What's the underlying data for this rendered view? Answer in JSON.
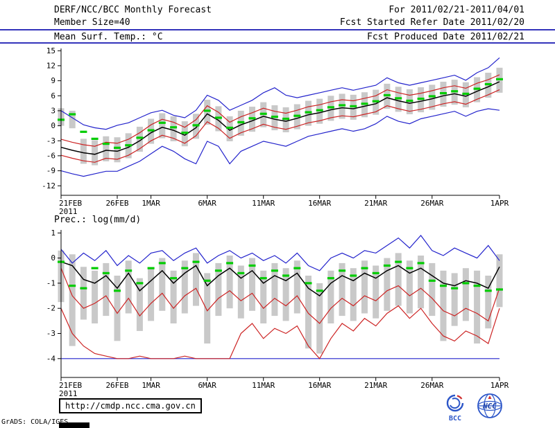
{
  "header": {
    "title": "DERF/NCC/BCC Monthly Forecast",
    "member_size": "Member Size=40",
    "temp_title": "Mean Surf. Temp.: °C",
    "forecast_range": "For 2011/02/21-2011/04/01",
    "refer_date": "Fcst Started Refer Date 2011/02/20",
    "produced_date": "Fcst Produced Date 2011/02/21"
  },
  "precip_title": "Prec.: log(mm/d)",
  "footer": {
    "url": "http://cmdp.ncc.cma.gov.cn",
    "grads_credit": "GrADS: COLA/IGES",
    "bcc_label": "BCC",
    "ncc_label": "NCC"
  },
  "colors": {
    "bar": "#c9c9c9",
    "mean": "#000000",
    "envelope": "#2222cc",
    "sigma": "#cc2222",
    "obs": "#00cc00",
    "header_rule": "#3333bb",
    "axis": "#000000",
    "logo_blue": "#2b55c8",
    "logo_red": "#d03030"
  },
  "chart_data": [
    {
      "type": "line",
      "title": "Mean Surf. Temp.: °C",
      "ylabel": "°C",
      "ylim": [
        -12,
        15
      ],
      "yticks": [
        15,
        12,
        9,
        6,
        3,
        0,
        -3,
        -6,
        -9,
        -12
      ],
      "n_days": 40,
      "x_ticks": [
        {
          "label": "21FEB",
          "day": 0
        },
        {
          "label": "26FEB",
          "day": 5
        },
        {
          "label": "1MAR",
          "day": 8
        },
        {
          "label": "6MAR",
          "day": 13
        },
        {
          "label": "11MAR",
          "day": 18
        },
        {
          "label": "16MAR",
          "day": 23
        },
        {
          "label": "21MAR",
          "day": 28
        },
        {
          "label": "26MAR",
          "day": 33
        },
        {
          "label": "1APR",
          "day": 39
        }
      ],
      "x_year_label": "2011",
      "bars": {
        "low": [
          0.0,
          -0.5,
          -7.6,
          -7.9,
          -7.1,
          -7.3,
          -6.5,
          -5.2,
          -3.6,
          -2.5,
          -3.1,
          -4.1,
          -2.6,
          0.2,
          -1.1,
          -3.1,
          -2.0,
          -1.2,
          -0.3,
          -0.9,
          -1.3,
          -0.7,
          0.0,
          0.4,
          1.0,
          1.4,
          1.2,
          1.7,
          2.2,
          3.4,
          2.8,
          2.3,
          2.7,
          3.2,
          3.8,
          4.2,
          3.7,
          4.7,
          5.6,
          6.6
        ],
        "high": [
          3.5,
          3.0,
          -2.6,
          -2.9,
          -2.1,
          -2.3,
          -1.5,
          -0.2,
          1.4,
          2.5,
          1.9,
          0.9,
          2.4,
          5.2,
          3.9,
          1.9,
          3.0,
          3.8,
          4.7,
          4.1,
          3.7,
          4.3,
          5.0,
          5.4,
          6.0,
          6.4,
          6.2,
          6.7,
          7.2,
          8.4,
          7.8,
          7.3,
          7.7,
          8.2,
          8.8,
          9.2,
          8.7,
          9.7,
          10.6,
          11.6
        ]
      },
      "obs": [
        1.2,
        2.3,
        -1.2,
        -2.6,
        -3.6,
        -4.4,
        -3.9,
        -2.4,
        -0.9,
        0.6,
        -0.3,
        -1.4,
        0.1,
        3.0,
        1.6,
        -0.4,
        0.7,
        1.5,
        2.4,
        1.8,
        1.4,
        2.0,
        2.7,
        3.1,
        3.7,
        4.1,
        3.9,
        4.4,
        4.9,
        6.1,
        5.5,
        5.0,
        5.4,
        5.9,
        6.5,
        6.9,
        6.4,
        7.4,
        8.3,
        9.3
      ],
      "series": [
        {
          "name": "ensemble-max",
          "color": "#2222cc",
          "values": [
            3.0,
            1.6,
            0.2,
            -0.4,
            -0.7,
            0.1,
            0.6,
            1.6,
            2.6,
            3.1,
            2.1,
            1.6,
            3.1,
            6.1,
            5.1,
            3.1,
            4.1,
            5.1,
            6.6,
            7.6,
            6.1,
            5.6,
            6.1,
            6.6,
            7.1,
            7.6,
            7.1,
            7.6,
            8.1,
            9.6,
            8.6,
            8.1,
            8.6,
            9.1,
            9.6,
            10.1,
            9.1,
            10.6,
            11.6,
            13.6
          ]
        },
        {
          "name": "ensemble-min",
          "color": "#2222cc",
          "values": [
            -9.0,
            -9.6,
            -10.1,
            -9.6,
            -9.1,
            -9.1,
            -8.1,
            -7.1,
            -5.6,
            -4.1,
            -5.1,
            -6.6,
            -7.6,
            -3.1,
            -4.1,
            -7.6,
            -5.1,
            -4.1,
            -3.1,
            -3.6,
            -4.1,
            -3.1,
            -2.1,
            -1.6,
            -1.1,
            -0.6,
            -1.1,
            -0.6,
            0.4,
            1.9,
            0.9,
            0.4,
            1.4,
            1.9,
            2.4,
            2.9,
            1.9,
            2.9,
            3.4,
            3.1
          ]
        },
        {
          "name": "sigma-upper",
          "color": "#cc2222",
          "values": [
            -2.7,
            -3.3,
            -3.8,
            -4.1,
            -3.3,
            -3.5,
            -2.7,
            -1.4,
            0.2,
            1.3,
            0.7,
            -0.3,
            1.2,
            4.0,
            2.7,
            0.7,
            1.8,
            2.6,
            3.5,
            2.9,
            2.5,
            3.1,
            3.8,
            4.2,
            4.8,
            5.2,
            5.0,
            5.5,
            6.0,
            7.2,
            6.6,
            6.1,
            6.5,
            7.0,
            7.6,
            8.0,
            7.5,
            8.5,
            9.2,
            10.2
          ]
        },
        {
          "name": "sigma-lower",
          "color": "#cc2222",
          "values": [
            -5.9,
            -6.5,
            -7.0,
            -7.3,
            -6.5,
            -6.7,
            -5.9,
            -4.6,
            -3.0,
            -1.9,
            -2.5,
            -3.5,
            -2.0,
            0.8,
            -0.5,
            -2.5,
            -1.4,
            -0.6,
            0.3,
            -0.3,
            -0.7,
            -0.1,
            0.6,
            1.0,
            1.6,
            2.0,
            1.8,
            2.3,
            2.8,
            4.0,
            3.4,
            2.9,
            3.3,
            3.8,
            4.4,
            4.8,
            4.3,
            5.3,
            6.2,
            7.2
          ]
        },
        {
          "name": "ensemble-mean",
          "color": "#000000",
          "values": [
            -4.3,
            -4.9,
            -5.4,
            -5.7,
            -4.9,
            -5.1,
            -4.3,
            -3.0,
            -1.4,
            -0.3,
            -0.9,
            -1.9,
            -0.4,
            2.4,
            1.1,
            -0.9,
            0.2,
            1.0,
            1.9,
            1.3,
            0.9,
            1.5,
            2.2,
            2.6,
            3.2,
            3.6,
            3.4,
            3.9,
            4.4,
            5.6,
            5.0,
            4.5,
            4.9,
            5.4,
            6.0,
            6.4,
            5.9,
            6.9,
            7.8,
            8.8
          ]
        }
      ]
    },
    {
      "type": "line",
      "title": "Prec.: log(mm/d)",
      "ylabel": "log(mm/d)",
      "ylim": [
        -4,
        1
      ],
      "yticks": [
        1,
        0,
        -1,
        -2,
        -3,
        -4
      ],
      "n_days": 40,
      "x_ticks": [
        {
          "label": "21FEB",
          "day": 0
        },
        {
          "label": "26FEB",
          "day": 5
        },
        {
          "label": "1MAR",
          "day": 8
        },
        {
          "label": "6MAR",
          "day": 13
        },
        {
          "label": "11MAR",
          "day": 18
        },
        {
          "label": "16MAR",
          "day": 23
        },
        {
          "label": "21MAR",
          "day": 28
        },
        {
          "label": "26MAR",
          "day": 33
        },
        {
          "label": "1APR",
          "day": 39
        }
      ],
      "x_year_label": "2011",
      "bars": {
        "low": [
          -1.75,
          -3.5,
          -2.45,
          -2.6,
          -2.3,
          -3.3,
          -2.2,
          -2.9,
          -2.5,
          -2.1,
          -2.6,
          -2.2,
          -1.9,
          -3.4,
          -2.3,
          -2.0,
          -2.4,
          -2.1,
          -2.6,
          -2.3,
          -2.5,
          -2.2,
          -3.6,
          -3.8,
          -2.6,
          -2.3,
          -2.5,
          -2.2,
          -2.4,
          -2.1,
          -1.9,
          -2.2,
          -2.0,
          -2.3,
          -3.3,
          -2.7,
          -2.5,
          -3.4,
          -2.8,
          -1.95
        ],
        "high": [
          0.3,
          0.15,
          -0.35,
          -0.5,
          -0.2,
          -0.7,
          -0.1,
          -0.8,
          -0.4,
          0.0,
          -0.5,
          -0.1,
          0.2,
          -0.6,
          -0.2,
          0.1,
          -0.3,
          0.0,
          -0.5,
          -0.2,
          -0.4,
          -0.1,
          -0.7,
          -1.0,
          -0.5,
          -0.2,
          -0.4,
          -0.1,
          -0.3,
          0.0,
          0.2,
          -0.1,
          0.1,
          -0.2,
          -0.5,
          -0.6,
          -0.4,
          -0.5,
          -0.7,
          0.15
        ]
      },
      "obs": [
        -0.15,
        -1.1,
        -1.2,
        -0.4,
        -0.6,
        -1.3,
        -0.5,
        -1.0,
        -0.4,
        -0.2,
        -0.8,
        -0.4,
        -0.15,
        -0.9,
        -0.5,
        -0.2,
        -0.6,
        -0.3,
        -0.8,
        -0.5,
        -0.7,
        -0.4,
        -1.0,
        -1.3,
        -0.8,
        -0.5,
        -0.7,
        -0.4,
        -0.6,
        -0.3,
        -0.15,
        -0.4,
        -0.2,
        -0.9,
        -1.1,
        -1.2,
        -1.0,
        -1.1,
        -1.3,
        -1.25
      ],
      "series": [
        {
          "name": "ensemble-max",
          "color": "#2222cc",
          "values": [
            0.35,
            -0.2,
            0.2,
            -0.1,
            0.3,
            -0.3,
            0.1,
            -0.2,
            0.2,
            0.3,
            -0.1,
            0.2,
            0.4,
            -0.2,
            0.1,
            0.3,
            0.0,
            0.2,
            -0.1,
            0.1,
            -0.2,
            0.2,
            -0.3,
            -0.5,
            0.0,
            0.2,
            0.0,
            0.3,
            0.2,
            0.5,
            0.8,
            0.4,
            0.9,
            0.3,
            0.1,
            0.4,
            0.2,
            0.0,
            0.5,
            -0.1
          ]
        },
        {
          "name": "ensemble-min",
          "color": "#2222cc",
          "const_value": -4.0
        },
        {
          "name": "sigma-upper",
          "color": "#cc2222",
          "values": [
            -0.4,
            -1.5,
            -2.0,
            -1.8,
            -1.5,
            -2.2,
            -1.6,
            -2.3,
            -1.8,
            -1.4,
            -2.0,
            -1.5,
            -1.2,
            -2.1,
            -1.6,
            -1.3,
            -1.7,
            -1.4,
            -2.0,
            -1.6,
            -1.9,
            -1.5,
            -2.2,
            -2.6,
            -2.0,
            -1.6,
            -1.9,
            -1.5,
            -1.7,
            -1.3,
            -1.1,
            -1.5,
            -1.2,
            -1.6,
            -2.1,
            -2.3,
            -2.0,
            -2.2,
            -2.5,
            -1.2
          ]
        },
        {
          "name": "sigma-lower",
          "color": "#cc2222",
          "values": [
            -2.0,
            -3.0,
            -3.5,
            -3.8,
            -3.9,
            -4.0,
            -4.0,
            -3.9,
            -4.0,
            -4.0,
            -4.0,
            -3.9,
            -4.0,
            -4.0,
            -4.0,
            -4.0,
            -3.0,
            -2.6,
            -3.2,
            -2.8,
            -3.0,
            -2.7,
            -3.5,
            -4.0,
            -3.2,
            -2.6,
            -2.9,
            -2.4,
            -2.7,
            -2.2,
            -1.9,
            -2.4,
            -2.0,
            -2.6,
            -3.1,
            -3.3,
            -2.9,
            -3.1,
            -3.4,
            -2.0
          ]
        },
        {
          "name": "ensemble-mean",
          "color": "#000000",
          "values": [
            -0.15,
            -0.3,
            -0.85,
            -1.0,
            -0.7,
            -1.2,
            -0.6,
            -1.3,
            -0.9,
            -0.5,
            -1.0,
            -0.6,
            -0.3,
            -1.1,
            -0.7,
            -0.4,
            -0.8,
            -0.5,
            -1.0,
            -0.7,
            -0.9,
            -0.6,
            -1.2,
            -1.5,
            -1.0,
            -0.7,
            -0.9,
            -0.6,
            -0.8,
            -0.5,
            -0.3,
            -0.6,
            -0.4,
            -0.7,
            -1.0,
            -1.1,
            -0.9,
            -1.0,
            -1.2,
            -0.35
          ]
        }
      ]
    }
  ]
}
